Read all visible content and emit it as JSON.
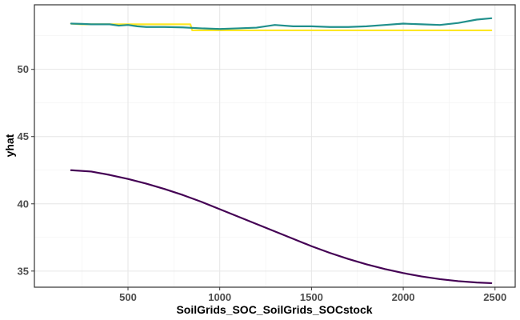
{
  "chart_data": {
    "type": "line",
    "xlabel": "SoilGrids_SOC_SoilGrids_SOCstock",
    "ylabel": "yhat",
    "xlim": [
      -10,
      2610
    ],
    "ylim": [
      33.8,
      54.8
    ],
    "x_ticks": [
      500,
      1000,
      1500,
      2000,
      2500
    ],
    "y_ticks": [
      35,
      40,
      45,
      50
    ],
    "x_tick_labels": [
      "500",
      "1000",
      "1500",
      "2000",
      "2500"
    ],
    "y_tick_labels": [
      "35",
      "40",
      "45",
      "50"
    ],
    "grid": true,
    "legend": "none",
    "series": [
      {
        "color": "#440154",
        "x": [
          190,
          300,
          400,
          500,
          600,
          700,
          800,
          900,
          1000,
          1100,
          1200,
          1300,
          1400,
          1500,
          1600,
          1700,
          1800,
          1900,
          2000,
          2100,
          2200,
          2300,
          2400,
          2480
        ],
        "y": [
          42.5,
          42.4,
          42.15,
          41.85,
          41.5,
          41.1,
          40.65,
          40.15,
          39.6,
          39.05,
          38.5,
          37.95,
          37.4,
          36.85,
          36.35,
          35.9,
          35.5,
          35.15,
          34.85,
          34.6,
          34.4,
          34.25,
          34.15,
          34.1
        ]
      },
      {
        "color": "#FDE725",
        "x": [
          190,
          250,
          400,
          420,
          600,
          840,
          850,
          1000,
          1500,
          2000,
          2480
        ],
        "y": [
          53.4,
          53.35,
          53.35,
          53.35,
          53.35,
          53.35,
          52.9,
          52.9,
          52.9,
          52.9,
          52.9
        ]
      },
      {
        "color": "#21908C",
        "x": [
          190,
          250,
          300,
          350,
          400,
          450,
          500,
          550,
          600,
          700,
          800,
          900,
          1000,
          1100,
          1200,
          1300,
          1400,
          1500,
          1600,
          1700,
          1800,
          1900,
          2000,
          2100,
          2200,
          2300,
          2400,
          2480
        ],
        "y": [
          53.4,
          53.38,
          53.35,
          53.35,
          53.35,
          53.25,
          53.3,
          53.2,
          53.15,
          53.15,
          53.12,
          53.05,
          53.0,
          53.05,
          53.1,
          53.3,
          53.2,
          53.2,
          53.15,
          53.15,
          53.2,
          53.3,
          53.4,
          53.35,
          53.3,
          53.45,
          53.7,
          53.8
        ]
      }
    ]
  }
}
